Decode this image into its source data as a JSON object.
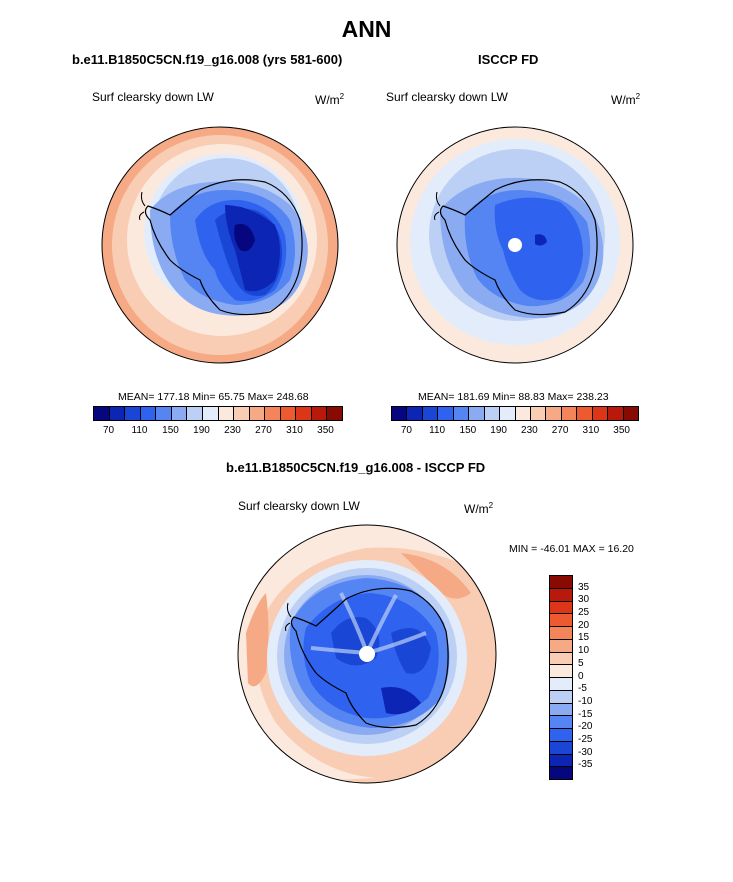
{
  "title": "ANN",
  "panels": {
    "left": {
      "title": "b.e11.B1850C5CN.f19_g16.008 (yrs 581-600)",
      "variable": "Surf clearsky down LW",
      "units_base": "W/m",
      "units_exp": "2",
      "stats": "MEAN= 177.18  Min=  65.75  Max= 248.68"
    },
    "right": {
      "title": "ISCCP FD",
      "variable": "Surf clearsky down LW",
      "units_base": "W/m",
      "units_exp": "2",
      "stats": "MEAN= 181.69  Min=  88.83  Max= 238.23"
    },
    "diff": {
      "title": "b.e11.B1850C5CN.f19_g16.008 - ISCCP FD",
      "variable": "Surf clearsky down LW",
      "units_base": "W/m",
      "units_exp": "2",
      "stats": "MIN = -46.01 MAX =  16.20"
    }
  },
  "colorbar_main": {
    "colors": [
      "#06067f",
      "#0c25b5",
      "#1a46d6",
      "#2f62ef",
      "#5585f2",
      "#8aaaf2",
      "#bcd0f5",
      "#e2ecfa",
      "#fce9de",
      "#f9ccb4",
      "#f6a985",
      "#f4845a",
      "#ee5a30",
      "#dc3517",
      "#b8190a",
      "#870b03"
    ],
    "labels": [
      "70",
      "110",
      "150",
      "190",
      "230",
      "270",
      "310",
      "350"
    ]
  },
  "colorbar_diff": {
    "colors": [
      "#870b03",
      "#b8190a",
      "#dc3517",
      "#ee5a30",
      "#f4845a",
      "#f6a985",
      "#f9ccb4",
      "#fce9de",
      "#e2ecfa",
      "#bcd0f5",
      "#8aaaf2",
      "#5585f2",
      "#2f62ef",
      "#1a46d6",
      "#0c25b5",
      "#06067f"
    ],
    "labels": [
      "35",
      "30",
      "25",
      "20",
      "15",
      "10",
      "5",
      "0",
      "-5",
      "-10",
      "-15",
      "-20",
      "-25",
      "-30",
      "-35"
    ]
  }
}
